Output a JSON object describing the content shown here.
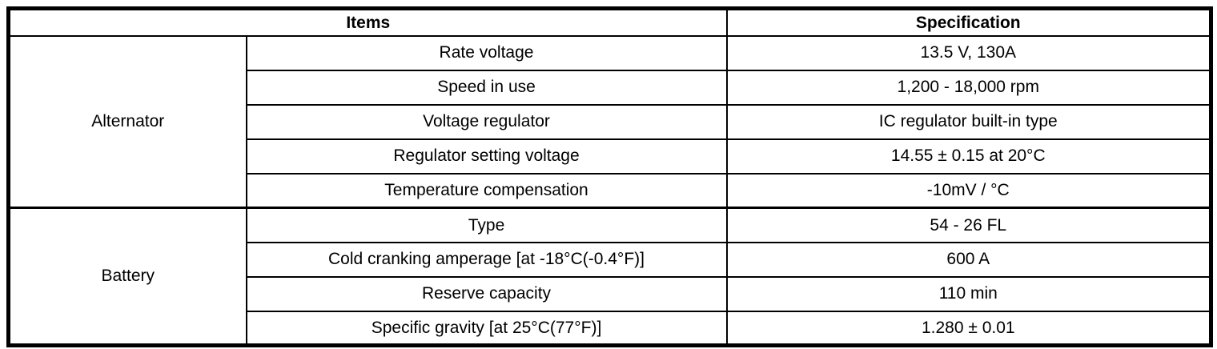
{
  "table": {
    "headers": {
      "items": "Items",
      "specification": "Specification"
    },
    "sections": [
      {
        "group": "Alternator",
        "rows": [
          {
            "item": "Rate voltage",
            "spec": "13.5 V, 130A"
          },
          {
            "item": "Speed in use",
            "spec": "1,200 - 18,000 rpm"
          },
          {
            "item": "Voltage regulator",
            "spec": "IC regulator built-in type"
          },
          {
            "item": "Regulator setting voltage",
            "spec": "14.55 ± 0.15 at 20°C"
          },
          {
            "item": "Temperature compensation",
            "spec": "-10mV / °C"
          }
        ]
      },
      {
        "group": "Battery",
        "rows": [
          {
            "item": "Type",
            "spec": "54 - 26 FL"
          },
          {
            "item": "Cold cranking amperage [at -18°C(-0.4°F)]",
            "spec": "600 A"
          },
          {
            "item": "Reserve capacity",
            "spec": "110 min"
          },
          {
            "item": "Specific gravity [at 25°C(77°F)]",
            "spec": "1.280 ± 0.01"
          }
        ]
      }
    ]
  },
  "colors": {
    "border": "#000000",
    "background": "#ffffff",
    "text": "#000000"
  }
}
